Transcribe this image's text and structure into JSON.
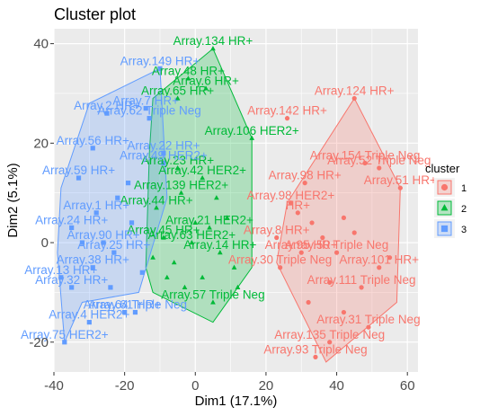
{
  "chart_data": {
    "type": "scatter",
    "title": "Cluster plot",
    "xlabel": "Dim1 (17.1%)",
    "ylabel": "Dim2 (5.1%)",
    "xlim": [
      -40,
      63
    ],
    "ylim": [
      -26,
      43
    ],
    "xticks": [
      -40,
      -20,
      0,
      20,
      40,
      60
    ],
    "yticks": [
      -20,
      0,
      20,
      40
    ],
    "grid": true,
    "legend": {
      "title": "cluster",
      "position": "right"
    },
    "series": [
      {
        "name": "1",
        "color": "#F8766D",
        "shape": "circle",
        "hull": [
          [
            26,
            8
          ],
          [
            45,
            29
          ],
          [
            58,
            11
          ],
          [
            57,
            -12
          ],
          [
            37,
            -24
          ],
          [
            23,
            -4
          ]
        ],
        "points": [
          {
            "x": 45,
            "y": 29,
            "label": "Array.124 HR+"
          },
          {
            "x": 26,
            "y": 25,
            "label": "Array.142 HR+"
          },
          {
            "x": 48,
            "y": 16,
            "label": "Array.154 Triple Neg"
          },
          {
            "x": 52,
            "y": 15,
            "label": "Array.52 Triple Neg"
          },
          {
            "x": 58,
            "y": 11,
            "label": "Array.51 HR+"
          },
          {
            "x": 31,
            "y": 12,
            "label": "Array.98 HR+"
          },
          {
            "x": 27,
            "y": 8,
            "label": "Array.98 HER2+"
          },
          {
            "x": 29,
            "y": 6,
            "label": "HR+"
          },
          {
            "x": 23,
            "y": 1,
            "label": "Array.8 HR+"
          },
          {
            "x": 30,
            "y": -2,
            "label": "Array.95 HR+"
          },
          {
            "x": 40,
            "y": -2,
            "label": "Array.50 Triple Neg"
          },
          {
            "x": 52,
            "y": -5,
            "label": "Array.101 HR+"
          },
          {
            "x": 24,
            "y": -5,
            "label": "Array.30 Triple Neg"
          },
          {
            "x": 47,
            "y": -9,
            "label": "Array.111 Triple Neg"
          },
          {
            "x": 49,
            "y": -17,
            "label": "Array.31 Triple Neg"
          },
          {
            "x": 38,
            "y": -20,
            "label": "Array.135 Triple Neg"
          },
          {
            "x": 34,
            "y": -23,
            "label": "Array.93 Triple Neg"
          },
          {
            "x": 36,
            "y": 1,
            "label": ""
          },
          {
            "x": 42,
            "y": 5,
            "label": ""
          },
          {
            "x": 38,
            "y": -8,
            "label": ""
          },
          {
            "x": 33,
            "y": 4,
            "label": ""
          },
          {
            "x": 45,
            "y": 2,
            "label": ""
          },
          {
            "x": 55,
            "y": -3,
            "label": ""
          },
          {
            "x": 32,
            "y": -12,
            "label": ""
          },
          {
            "x": 42,
            "y": -14,
            "label": ""
          }
        ]
      },
      {
        "name": "2",
        "color": "#00BA38",
        "shape": "triangle",
        "hull": [
          [
            -12,
            29
          ],
          [
            5,
            39
          ],
          [
            16,
            21
          ],
          [
            16,
            -5
          ],
          [
            5,
            -16
          ],
          [
            -12,
            -10
          ],
          [
            -14,
            -5
          ],
          [
            -13,
            18
          ]
        ],
        "points": [
          {
            "x": 5,
            "y": 39,
            "label": "Array.134 HR+"
          },
          {
            "x": -2,
            "y": 33,
            "label": "Array.48 HR+"
          },
          {
            "x": 3,
            "y": 31,
            "label": "Array.6 HR+"
          },
          {
            "x": -5,
            "y": 29,
            "label": "Array.65 HR+"
          },
          {
            "x": 16,
            "y": 21,
            "label": "Array.106 HER2+"
          },
          {
            "x": -5,
            "y": 15,
            "label": "Array.23 HR+"
          },
          {
            "x": 2,
            "y": 13,
            "label": "Array.42 HER2+"
          },
          {
            "x": -4,
            "y": 10,
            "label": "Array.139 HER2+"
          },
          {
            "x": -11,
            "y": 7,
            "label": "Array.44 HR+"
          },
          {
            "x": 4,
            "y": 3,
            "label": "Array.21 HER2+"
          },
          {
            "x": -9,
            "y": 1,
            "label": "Array.45 HR+"
          },
          {
            "x": -1,
            "y": 0,
            "label": "Array.63 HER2+"
          },
          {
            "x": 7,
            "y": -2,
            "label": "Array.14 HR+"
          },
          {
            "x": 5,
            "y": -12,
            "label": "Array.57 Triple Neg"
          },
          {
            "x": 11,
            "y": -5,
            "label": ""
          },
          {
            "x": -6,
            "y": -4,
            "label": ""
          },
          {
            "x": 2,
            "y": -7,
            "label": ""
          },
          {
            "x": -3,
            "y": -9,
            "label": ""
          },
          {
            "x": 9,
            "y": 5,
            "label": ""
          },
          {
            "x": -8,
            "y": -7,
            "label": ""
          },
          {
            "x": 12,
            "y": -9,
            "label": ""
          },
          {
            "x": 0,
            "y": 4,
            "label": ""
          },
          {
            "x": -12,
            "y": -3,
            "label": ""
          },
          {
            "x": 6,
            "y": 9,
            "label": ""
          }
        ]
      },
      {
        "name": "3",
        "color": "#619CFF",
        "shape": "square",
        "hull": [
          [
            -10,
            35
          ],
          [
            -30,
            28
          ],
          [
            -38,
            11
          ],
          [
            -39,
            -2
          ],
          [
            -37,
            -20
          ],
          [
            -32,
            -12
          ],
          [
            -16,
            -10
          ],
          [
            -8,
            9
          ]
        ],
        "points": [
          {
            "x": -10,
            "y": 35,
            "label": "Array.149 HR+"
          },
          {
            "x": -14,
            "y": 27,
            "label": "Array.7 HR+"
          },
          {
            "x": -25,
            "y": 26,
            "label": "Array.2 HR+"
          },
          {
            "x": -13,
            "y": 25,
            "label": "Array.62 Triple Neg"
          },
          {
            "x": -29,
            "y": 19,
            "label": "Array.56 HR+"
          },
          {
            "x": -9,
            "y": 18,
            "label": "Array.22 HR+"
          },
          {
            "x": -9,
            "y": 16,
            "label": "Array.49 HER2+"
          },
          {
            "x": -33,
            "y": 13,
            "label": "Array.59 HR+"
          },
          {
            "x": -28,
            "y": 6,
            "label": "Array.1 HR+"
          },
          {
            "x": -35,
            "y": 3,
            "label": "Array.24 HR+"
          },
          {
            "x": -26,
            "y": 0,
            "label": "Array.90 HR+"
          },
          {
            "x": -23,
            "y": -2,
            "label": "Array.25 HR+"
          },
          {
            "x": -29,
            "y": -5,
            "label": "Array.38 HR+"
          },
          {
            "x": -38,
            "y": -7,
            "label": "Array.13 HR+"
          },
          {
            "x": -35,
            "y": -9,
            "label": "Array.32 HR+"
          },
          {
            "x": -30,
            "y": -16,
            "label": "Array.4 HER2+"
          },
          {
            "x": -17,
            "y": -14,
            "label": "Array.64 Triple Neg"
          },
          {
            "x": -20,
            "y": -14,
            "label": "Array.61 HR+"
          },
          {
            "x": -37,
            "y": -20,
            "label": "Array.75 HER2+"
          },
          {
            "x": -18,
            "y": 4,
            "label": ""
          },
          {
            "x": -22,
            "y": 9,
            "label": ""
          },
          {
            "x": -15,
            "y": -6,
            "label": ""
          },
          {
            "x": -32,
            "y": 0,
            "label": ""
          },
          {
            "x": -24,
            "y": -9,
            "label": ""
          },
          {
            "x": -19,
            "y": 12,
            "label": ""
          }
        ]
      }
    ]
  }
}
